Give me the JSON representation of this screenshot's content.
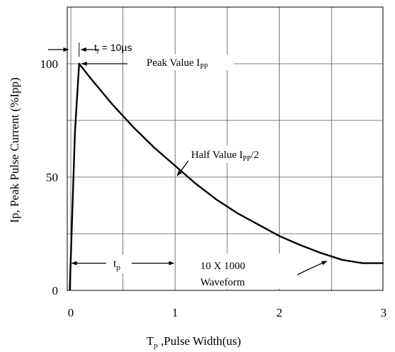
{
  "chart_data": {
    "type": "line",
    "title": "",
    "xlabel_main": "T",
    "xlabel_sub": "p",
    "xlabel_rest": " ,Pulse Width(us)",
    "ylabel": "Ip, Peak Pulse Current (%Ipp)",
    "x_ticks": [
      "0",
      "1",
      "2",
      "3"
    ],
    "x_tick_values": [
      0,
      1,
      2,
      3
    ],
    "y_ticks": [
      "0",
      "50",
      "100"
    ],
    "y_tick_values": [
      0,
      50,
      100
    ],
    "xlim": [
      -0.01,
      3
    ],
    "ylim": [
      0,
      121
    ],
    "grid": true,
    "series": [
      {
        "x": [
          -0.01,
          0.04,
          0.08,
          0.2,
          0.4,
          0.6,
          0.8,
          1.0,
          1.2,
          1.4,
          1.6,
          1.8,
          2.0,
          2.2,
          2.4,
          2.6,
          2.8,
          3.0
        ],
        "y": [
          0,
          70,
          100,
          93,
          82,
          72,
          63,
          55,
          47,
          40,
          34,
          29,
          24,
          20,
          16.5,
          13.5,
          12,
          12
        ]
      }
    ],
    "annotations": {
      "tr_main": "t",
      "tr_sub": "r",
      "tr_eq": " = ",
      "tr_value": "10µs",
      "peak_main": "Peak Value I",
      "peak_sub": "PP",
      "half_main": "Half Value I",
      "half_sub": "PP",
      "half_tail": "/2",
      "tp_main": "t",
      "tp_sub": "p",
      "waveform_line1": "10 X 1000",
      "waveform_line2": "Waveform"
    }
  }
}
